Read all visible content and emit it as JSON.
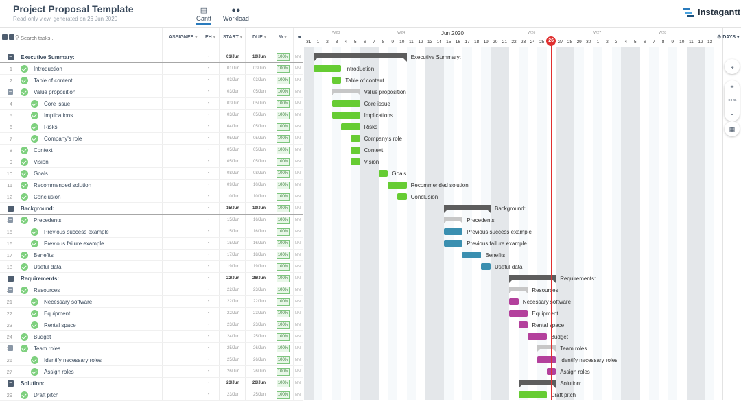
{
  "header": {
    "title": "Project Proposal Template",
    "subtitle": "Read-only view, generated on 26 Jun 2020",
    "tabs": [
      {
        "label": "Gantt",
        "icon": "gantt-icon"
      },
      {
        "label": "Workload",
        "icon": "people-icon"
      }
    ],
    "logo": "Instagantt"
  },
  "table": {
    "search_placeholder": "Search tasks...",
    "columns": {
      "assignee": "ASSIGNEE",
      "eh": "EH",
      "start": "START",
      "due": "DUE",
      "pct": "%"
    }
  },
  "rows": [
    {
      "num": "",
      "type": "group",
      "name": "Executive Summary:",
      "eh": "-",
      "start": "01/Jun",
      "due": "10/Jun",
      "pct": "100%"
    },
    {
      "num": "1",
      "type": "task",
      "level": 1,
      "name": "Introduction",
      "eh": "-",
      "start": "01/Jun",
      "due": "03/Jun",
      "pct": "100%"
    },
    {
      "num": "2",
      "type": "task",
      "level": 1,
      "name": "Table of content",
      "eh": "-",
      "start": "03/Jun",
      "due": "03/Jun",
      "pct": "100%"
    },
    {
      "num": "3",
      "type": "sub",
      "level": 1,
      "name": "Value proposition",
      "eh": "-",
      "start": "03/Jun",
      "due": "05/Jun",
      "pct": "100%"
    },
    {
      "num": "4",
      "type": "task",
      "level": 2,
      "name": "Core issue",
      "eh": "-",
      "start": "03/Jun",
      "due": "05/Jun",
      "pct": "100%"
    },
    {
      "num": "5",
      "type": "task",
      "level": 2,
      "name": "Implications",
      "eh": "-",
      "start": "03/Jun",
      "due": "05/Jun",
      "pct": "100%"
    },
    {
      "num": "6",
      "type": "task",
      "level": 2,
      "name": "Risks",
      "eh": "-",
      "start": "04/Jun",
      "due": "05/Jun",
      "pct": "100%"
    },
    {
      "num": "7",
      "type": "task",
      "level": 2,
      "name": "Company's role",
      "eh": "-",
      "start": "05/Jun",
      "due": "05/Jun",
      "pct": "100%"
    },
    {
      "num": "8",
      "type": "task",
      "level": 1,
      "name": "Context",
      "eh": "-",
      "start": "05/Jun",
      "due": "05/Jun",
      "pct": "100%"
    },
    {
      "num": "9",
      "type": "task",
      "level": 1,
      "name": "Vision",
      "eh": "-",
      "start": "05/Jun",
      "due": "05/Jun",
      "pct": "100%"
    },
    {
      "num": "10",
      "type": "task",
      "level": 1,
      "name": "Goals",
      "eh": "-",
      "start": "08/Jun",
      "due": "08/Jun",
      "pct": "100%"
    },
    {
      "num": "11",
      "type": "task",
      "level": 1,
      "name": "Recommended solution",
      "eh": "-",
      "start": "09/Jun",
      "due": "10/Jun",
      "pct": "100%"
    },
    {
      "num": "12",
      "type": "task",
      "level": 1,
      "name": "Conclusion",
      "eh": "-",
      "start": "10/Jun",
      "due": "10/Jun",
      "pct": "100%"
    },
    {
      "num": "",
      "type": "group",
      "name": "Background:",
      "eh": "-",
      "start": "15/Jun",
      "due": "19/Jun",
      "pct": "100%"
    },
    {
      "num": "14",
      "type": "sub",
      "level": 1,
      "name": "Precedents",
      "eh": "-",
      "start": "15/Jun",
      "due": "16/Jun",
      "pct": "100%"
    },
    {
      "num": "15",
      "type": "task",
      "level": 2,
      "name": "Previous success example",
      "eh": "-",
      "start": "15/Jun",
      "due": "16/Jun",
      "pct": "100%"
    },
    {
      "num": "16",
      "type": "task",
      "level": 2,
      "name": "Previous failure example",
      "eh": "-",
      "start": "15/Jun",
      "due": "16/Jun",
      "pct": "100%"
    },
    {
      "num": "17",
      "type": "task",
      "level": 1,
      "name": "Benefits",
      "eh": "-",
      "start": "17/Jun",
      "due": "18/Jun",
      "pct": "100%"
    },
    {
      "num": "18",
      "type": "task",
      "level": 1,
      "name": "Useful data",
      "eh": "-",
      "start": "19/Jun",
      "due": "19/Jun",
      "pct": "100%"
    },
    {
      "num": "",
      "type": "group",
      "name": "Requirements:",
      "eh": "-",
      "start": "22/Jun",
      "due": "26/Jun",
      "pct": "100%"
    },
    {
      "num": "20",
      "type": "sub",
      "level": 1,
      "name": "Resources",
      "eh": "-",
      "start": "22/Jun",
      "due": "23/Jun",
      "pct": "100%"
    },
    {
      "num": "21",
      "type": "task",
      "level": 2,
      "name": "Necessary software",
      "eh": "-",
      "start": "22/Jun",
      "due": "22/Jun",
      "pct": "100%"
    },
    {
      "num": "22",
      "type": "task",
      "level": 2,
      "name": "Equipment",
      "eh": "-",
      "start": "22/Jun",
      "due": "23/Jun",
      "pct": "100%"
    },
    {
      "num": "23",
      "type": "task",
      "level": 2,
      "name": "Rental space",
      "eh": "-",
      "start": "23/Jun",
      "due": "23/Jun",
      "pct": "100%"
    },
    {
      "num": "24",
      "type": "task",
      "level": 1,
      "name": "Budget",
      "eh": "-",
      "start": "24/Jun",
      "due": "25/Jun",
      "pct": "100%"
    },
    {
      "num": "25",
      "type": "sub",
      "level": 1,
      "name": "Team roles",
      "eh": "-",
      "start": "25/Jun",
      "due": "26/Jun",
      "pct": "100%"
    },
    {
      "num": "26",
      "type": "task",
      "level": 2,
      "name": "Identify necessary roles",
      "eh": "-",
      "start": "25/Jun",
      "due": "26/Jun",
      "pct": "100%"
    },
    {
      "num": "27",
      "type": "task",
      "level": 2,
      "name": "Assign roles",
      "eh": "-",
      "start": "26/Jun",
      "due": "26/Jun",
      "pct": "100%"
    },
    {
      "num": "",
      "type": "group",
      "name": "Solution:",
      "eh": "-",
      "start": "23/Jun",
      "due": "26/Jun",
      "pct": "100%"
    },
    {
      "num": "29",
      "type": "task",
      "level": 1,
      "name": "Draft pitch",
      "eh": "-",
      "start": "23/Jun",
      "due": "25/Jun",
      "pct": "100%"
    }
  ],
  "timeline": {
    "month_label": "Jun 2020",
    "weeks": [
      "W23",
      "W24",
      "W26",
      "W27",
      "W28"
    ],
    "day_numbers": [
      "31",
      "1",
      "2",
      "3",
      "4",
      "5",
      "6",
      "7",
      "8",
      "9",
      "10",
      "11",
      "12",
      "13",
      "14",
      "15",
      "16",
      "17",
      "18",
      "19",
      "20",
      "21",
      "22",
      "23",
      "24",
      "25",
      "26",
      "27",
      "28",
      "29",
      "30",
      "1",
      "2",
      "3",
      "4",
      "5",
      "6",
      "7",
      "8",
      "9",
      "10",
      "11",
      "12",
      "13"
    ],
    "today": "26",
    "scale": "DAYS",
    "zoom": "100%"
  },
  "gantt_bars": [
    {
      "row": 0,
      "kind": "group",
      "from": "2020-06-01",
      "to": "2020-06-10"
    },
    {
      "row": 1,
      "kind": "task",
      "from": "2020-06-01",
      "to": "2020-06-03",
      "color": "#66cc33"
    },
    {
      "row": 2,
      "kind": "task",
      "from": "2020-06-03",
      "to": "2020-06-03",
      "color": "#66cc33"
    },
    {
      "row": 3,
      "kind": "sub",
      "from": "2020-06-03",
      "to": "2020-06-05"
    },
    {
      "row": 4,
      "kind": "task",
      "from": "2020-06-03",
      "to": "2020-06-05",
      "color": "#66cc33"
    },
    {
      "row": 5,
      "kind": "task",
      "from": "2020-06-03",
      "to": "2020-06-05",
      "color": "#66cc33"
    },
    {
      "row": 6,
      "kind": "task",
      "from": "2020-06-04",
      "to": "2020-06-05",
      "color": "#66cc33"
    },
    {
      "row": 7,
      "kind": "task",
      "from": "2020-06-05",
      "to": "2020-06-05",
      "color": "#66cc33"
    },
    {
      "row": 8,
      "kind": "task",
      "from": "2020-06-05",
      "to": "2020-06-05",
      "color": "#66cc33"
    },
    {
      "row": 9,
      "kind": "task",
      "from": "2020-06-05",
      "to": "2020-06-05",
      "color": "#66cc33"
    },
    {
      "row": 10,
      "kind": "task",
      "from": "2020-06-08",
      "to": "2020-06-08",
      "color": "#66cc33"
    },
    {
      "row": 11,
      "kind": "task",
      "from": "2020-06-09",
      "to": "2020-06-10",
      "color": "#66cc33"
    },
    {
      "row": 12,
      "kind": "task",
      "from": "2020-06-10",
      "to": "2020-06-10",
      "color": "#66cc33"
    },
    {
      "row": 13,
      "kind": "group",
      "from": "2020-06-15",
      "to": "2020-06-19"
    },
    {
      "row": 14,
      "kind": "sub",
      "from": "2020-06-15",
      "to": "2020-06-16"
    },
    {
      "row": 15,
      "kind": "task",
      "from": "2020-06-15",
      "to": "2020-06-16",
      "color": "#3a8fb0"
    },
    {
      "row": 16,
      "kind": "task",
      "from": "2020-06-15",
      "to": "2020-06-16",
      "color": "#3a8fb0"
    },
    {
      "row": 17,
      "kind": "task",
      "from": "2020-06-17",
      "to": "2020-06-18",
      "color": "#3a8fb0"
    },
    {
      "row": 18,
      "kind": "task",
      "from": "2020-06-19",
      "to": "2020-06-19",
      "color": "#3a8fb0"
    },
    {
      "row": 19,
      "kind": "group",
      "from": "2020-06-22",
      "to": "2020-06-26"
    },
    {
      "row": 20,
      "kind": "sub",
      "from": "2020-06-22",
      "to": "2020-06-23"
    },
    {
      "row": 21,
      "kind": "task",
      "from": "2020-06-22",
      "to": "2020-06-22",
      "color": "#b3409c"
    },
    {
      "row": 22,
      "kind": "task",
      "from": "2020-06-22",
      "to": "2020-06-23",
      "color": "#b3409c"
    },
    {
      "row": 23,
      "kind": "task",
      "from": "2020-06-23",
      "to": "2020-06-23",
      "color": "#b3409c"
    },
    {
      "row": 24,
      "kind": "task",
      "from": "2020-06-24",
      "to": "2020-06-25",
      "color": "#b3409c"
    },
    {
      "row": 25,
      "kind": "sub",
      "from": "2020-06-25",
      "to": "2020-06-26"
    },
    {
      "row": 26,
      "kind": "task",
      "from": "2020-06-25",
      "to": "2020-06-26",
      "color": "#b3409c"
    },
    {
      "row": 27,
      "kind": "task",
      "from": "2020-06-26",
      "to": "2020-06-26",
      "color": "#b3409c"
    },
    {
      "row": 28,
      "kind": "group",
      "from": "2020-06-23",
      "to": "2020-06-26"
    },
    {
      "row": 29,
      "kind": "task",
      "from": "2020-06-23",
      "to": "2020-06-25",
      "color": "#66cc33"
    }
  ]
}
